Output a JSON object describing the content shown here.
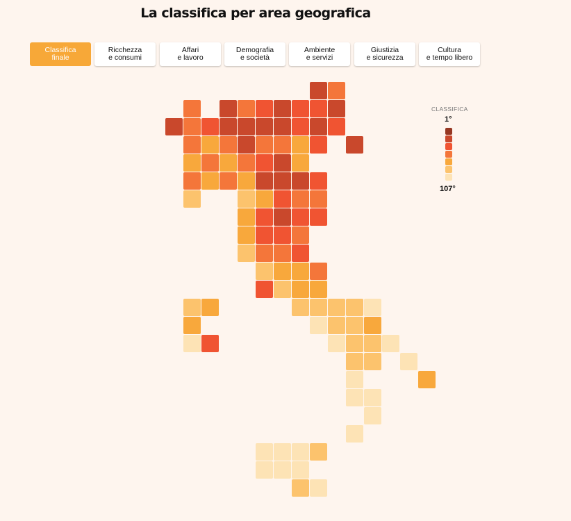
{
  "title": "La classifica per area geografica",
  "tabs": [
    {
      "line1": "Classifica",
      "line2": "finale",
      "active": true
    },
    {
      "line1": "Ricchezza",
      "line2": "e consumi",
      "active": false
    },
    {
      "line1": "Affari",
      "line2": "e lavoro",
      "active": false
    },
    {
      "line1": "Demografia",
      "line2": "e società",
      "active": false
    },
    {
      "line1": "Ambiente",
      "line2": "e servizi",
      "active": false
    },
    {
      "line1": "Giustizia",
      "line2": "e sicurezza",
      "active": false
    },
    {
      "line1": "Cultura",
      "line2": "e tempo libero",
      "active": false
    }
  ],
  "legend": {
    "title": "CLASSIFICA",
    "top_label": "1°",
    "bottom_label": "107°",
    "colors": [
      "#963722",
      "#c9482c",
      "#f05432",
      "#f4763a",
      "#f8a83c",
      "#fcc36d",
      "#fde3b5"
    ]
  },
  "map": {
    "rows": [
      {
        "row": 0,
        "tiles": [
          {
            "col": 10,
            "level": 1
          },
          {
            "col": 11,
            "level": 3
          }
        ]
      },
      {
        "row": 1,
        "tiles": [
          {
            "col": 3,
            "level": 3
          },
          {
            "col": 5,
            "level": 1
          },
          {
            "col": 6,
            "level": 3
          },
          {
            "col": 7,
            "level": 2
          },
          {
            "col": 8,
            "level": 1
          },
          {
            "col": 9,
            "level": 2
          },
          {
            "col": 10,
            "level": 2
          },
          {
            "col": 11,
            "level": 1
          }
        ]
      },
      {
        "row": 2,
        "tiles": [
          {
            "col": 2,
            "level": 1
          },
          {
            "col": 3,
            "level": 3
          },
          {
            "col": 4,
            "level": 2
          },
          {
            "col": 5,
            "level": 1
          },
          {
            "col": 6,
            "level": 1
          },
          {
            "col": 7,
            "level": 1
          },
          {
            "col": 8,
            "level": 1
          },
          {
            "col": 9,
            "level": 2
          },
          {
            "col": 10,
            "level": 1
          },
          {
            "col": 11,
            "level": 2
          }
        ]
      },
      {
        "row": 3,
        "tiles": [
          {
            "col": 3,
            "level": 3
          },
          {
            "col": 4,
            "level": 4
          },
          {
            "col": 5,
            "level": 3
          },
          {
            "col": 6,
            "level": 1
          },
          {
            "col": 7,
            "level": 3
          },
          {
            "col": 8,
            "level": 3
          },
          {
            "col": 9,
            "level": 4
          },
          {
            "col": 10,
            "level": 2
          },
          {
            "col": 12,
            "level": 1
          }
        ]
      },
      {
        "row": 4,
        "tiles": [
          {
            "col": 3,
            "level": 4
          },
          {
            "col": 4,
            "level": 3
          },
          {
            "col": 5,
            "level": 4
          },
          {
            "col": 6,
            "level": 3
          },
          {
            "col": 7,
            "level": 2
          },
          {
            "col": 8,
            "level": 1
          },
          {
            "col": 9,
            "level": 4
          }
        ]
      },
      {
        "row": 5,
        "tiles": [
          {
            "col": 3,
            "level": 3
          },
          {
            "col": 4,
            "level": 4
          },
          {
            "col": 5,
            "level": 3
          },
          {
            "col": 6,
            "level": 4
          },
          {
            "col": 7,
            "level": 1
          },
          {
            "col": 8,
            "level": 1
          },
          {
            "col": 9,
            "level": 1
          },
          {
            "col": 10,
            "level": 2
          }
        ]
      },
      {
        "row": 6,
        "tiles": [
          {
            "col": 3,
            "level": 5
          },
          {
            "col": 6,
            "level": 5
          },
          {
            "col": 7,
            "level": 4
          },
          {
            "col": 8,
            "level": 2
          },
          {
            "col": 9,
            "level": 3
          },
          {
            "col": 10,
            "level": 3
          }
        ]
      },
      {
        "row": 7,
        "tiles": [
          {
            "col": 6,
            "level": 4
          },
          {
            "col": 7,
            "level": 2
          },
          {
            "col": 8,
            "level": 1
          },
          {
            "col": 9,
            "level": 2
          },
          {
            "col": 10,
            "level": 2
          }
        ]
      },
      {
        "row": 8,
        "tiles": [
          {
            "col": 6,
            "level": 4
          },
          {
            "col": 7,
            "level": 2
          },
          {
            "col": 8,
            "level": 2
          },
          {
            "col": 9,
            "level": 3
          }
        ]
      },
      {
        "row": 9,
        "tiles": [
          {
            "col": 6,
            "level": 5
          },
          {
            "col": 7,
            "level": 3
          },
          {
            "col": 8,
            "level": 3
          },
          {
            "col": 9,
            "level": 2
          }
        ]
      },
      {
        "row": 10,
        "tiles": [
          {
            "col": 7,
            "level": 5
          },
          {
            "col": 8,
            "level": 4
          },
          {
            "col": 9,
            "level": 4
          },
          {
            "col": 10,
            "level": 3
          }
        ]
      },
      {
        "row": 11,
        "tiles": [
          {
            "col": 7,
            "level": 2
          },
          {
            "col": 8,
            "level": 5
          },
          {
            "col": 9,
            "level": 4
          },
          {
            "col": 10,
            "level": 4
          }
        ]
      },
      {
        "row": 12,
        "tiles": [
          {
            "col": 3,
            "level": 5
          },
          {
            "col": 4,
            "level": 4
          },
          {
            "col": 9,
            "level": 5
          },
          {
            "col": 10,
            "level": 5
          },
          {
            "col": 11,
            "level": 5
          },
          {
            "col": 12,
            "level": 5
          },
          {
            "col": 13,
            "level": 6
          }
        ]
      },
      {
        "row": 13,
        "tiles": [
          {
            "col": 3,
            "level": 4
          },
          {
            "col": 10,
            "level": 6
          },
          {
            "col": 11,
            "level": 5
          },
          {
            "col": 12,
            "level": 5
          },
          {
            "col": 13,
            "level": 4
          }
        ]
      },
      {
        "row": 14,
        "tiles": [
          {
            "col": 3,
            "level": 6
          },
          {
            "col": 4,
            "level": 2
          },
          {
            "col": 11,
            "level": 6
          },
          {
            "col": 12,
            "level": 5
          },
          {
            "col": 13,
            "level": 5
          },
          {
            "col": 14,
            "level": 6
          }
        ]
      },
      {
        "row": 15,
        "tiles": [
          {
            "col": 12,
            "level": 5
          },
          {
            "col": 13,
            "level": 5
          },
          {
            "col": 15,
            "level": 6
          }
        ]
      },
      {
        "row": 16,
        "tiles": [
          {
            "col": 12,
            "level": 6
          },
          {
            "col": 16,
            "level": 4
          }
        ]
      },
      {
        "row": 17,
        "tiles": [
          {
            "col": 12,
            "level": 6
          },
          {
            "col": 13,
            "level": 6
          }
        ]
      },
      {
        "row": 18,
        "tiles": [
          {
            "col": 13,
            "level": 6
          }
        ]
      },
      {
        "row": 19,
        "tiles": [
          {
            "col": 12,
            "level": 6
          }
        ]
      },
      {
        "row": 20,
        "tiles": [
          {
            "col": 7,
            "level": 6
          },
          {
            "col": 8,
            "level": 6
          },
          {
            "col": 9,
            "level": 6
          },
          {
            "col": 10,
            "level": 5
          }
        ]
      },
      {
        "row": 21,
        "tiles": [
          {
            "col": 7,
            "level": 6
          },
          {
            "col": 8,
            "level": 6
          },
          {
            "col": 9,
            "level": 6
          }
        ]
      },
      {
        "row": 22,
        "tiles": [
          {
            "col": 9,
            "level": 5
          },
          {
            "col": 10,
            "level": 6
          }
        ]
      }
    ]
  }
}
